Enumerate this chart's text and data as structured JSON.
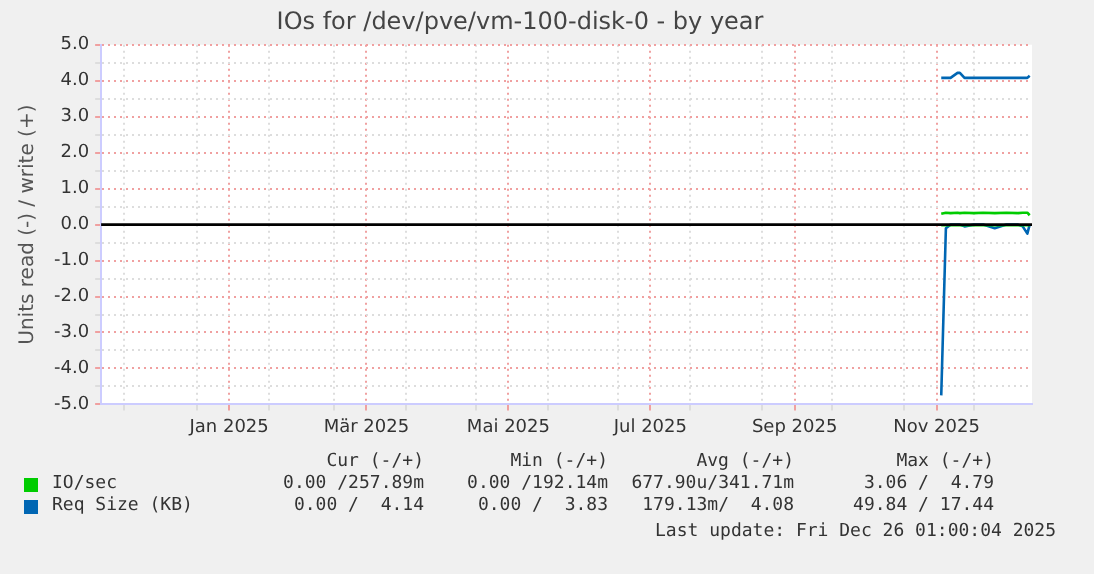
{
  "chart_data": {
    "type": "line",
    "title": "IOs for /dev/pve/vm-100-disk-0 - by year",
    "ylabel": "Units read (-) / write (+)",
    "x": [
      "2025-11-17",
      "2025-11-19",
      "2025-11-21",
      "2025-11-24",
      "2025-11-25",
      "2025-11-27",
      "2025-12-01",
      "2025-12-05",
      "2025-12-10",
      "2025-12-15",
      "2025-12-20",
      "2025-12-22",
      "2025-12-24",
      "2025-12-25"
    ],
    "series": [
      {
        "name": "IO/sec",
        "color": "#00cc00",
        "values": [
          0.3,
          0.33,
          0.32,
          0.33,
          0.32,
          0.33,
          0.32,
          0.33,
          0.32,
          0.33,
          0.32,
          0.33,
          0.33,
          0.26
        ]
      },
      {
        "color": "#00cc00",
        "values": [
          -0.02,
          -0.02,
          -0.02,
          -0.02,
          -0.02,
          -0.02,
          -0.02,
          -0.02,
          -0.02,
          -0.02,
          -0.02,
          -0.02,
          -0.02,
          -0.02
        ]
      },
      {
        "name": "Req Size (KB)",
        "color": "#0066b3",
        "values": [
          4.08,
          4.08,
          4.08,
          4.22,
          4.22,
          4.08,
          4.08,
          4.08,
          4.08,
          4.08,
          4.08,
          4.08,
          4.08,
          4.14
        ]
      },
      {
        "color": "#0066b3",
        "values": [
          -4.75,
          -0.1,
          0,
          0,
          0,
          -0.05,
          0,
          0,
          -0.1,
          0,
          0,
          -0.05,
          -0.25,
          0
        ]
      }
    ],
    "xlim": [
      "2024-11-21",
      "2025-12-26"
    ],
    "xticks": [
      {
        "value": "2024-12-01",
        "label": null
      },
      {
        "value": "2025-01-01",
        "label": null
      },
      {
        "value": "2025-01-15",
        "label": "Jan 2025"
      },
      {
        "value": "2025-02-01",
        "label": null
      },
      {
        "value": "2025-03-01",
        "label": null
      },
      {
        "value": "2025-03-15",
        "label": "Mär 2025"
      },
      {
        "value": "2025-04-01",
        "label": null
      },
      {
        "value": "2025-05-01",
        "label": null
      },
      {
        "value": "2025-05-15",
        "label": "Mai 2025"
      },
      {
        "value": "2025-06-01",
        "label": null
      },
      {
        "value": "2025-07-01",
        "label": null
      },
      {
        "value": "2025-07-15",
        "label": "Jul 2025"
      },
      {
        "value": "2025-08-01",
        "label": null
      },
      {
        "value": "2025-09-01",
        "label": null
      },
      {
        "value": "2025-09-15",
        "label": "Sep 2025"
      },
      {
        "value": "2025-10-01",
        "label": null
      },
      {
        "value": "2025-11-01",
        "label": null
      },
      {
        "value": "2025-11-15",
        "label": "Nov 2025"
      },
      {
        "value": "2025-12-01",
        "label": null
      }
    ],
    "ylim": [
      -5,
      5
    ],
    "yticks": [
      {
        "value": -5,
        "label": "-5.0"
      },
      {
        "value": -4.5,
        "label": null
      },
      {
        "value": -4,
        "label": "-4.0"
      },
      {
        "value": -3.5,
        "label": null
      },
      {
        "value": -3,
        "label": "-3.0"
      },
      {
        "value": -2.5,
        "label": null
      },
      {
        "value": -2,
        "label": "-2.0"
      },
      {
        "value": -1.5,
        "label": null
      },
      {
        "value": -1,
        "label": "-1.0"
      },
      {
        "value": -0.5,
        "label": null
      },
      {
        "value": 0,
        "label": "0.0"
      },
      {
        "value": 0.5,
        "label": null
      },
      {
        "value": 1,
        "label": "1.0"
      },
      {
        "value": 1.5,
        "label": null
      },
      {
        "value": 2,
        "label": "2.0"
      },
      {
        "value": 2.5,
        "label": null
      },
      {
        "value": 3,
        "label": "3.0"
      },
      {
        "value": 3.5,
        "label": null
      },
      {
        "value": 4,
        "label": "4.0"
      },
      {
        "value": 4.5,
        "label": null
      },
      {
        "value": 5,
        "label": "5.0"
      }
    ],
    "ref_lines": [
      {
        "axis": "y",
        "value": 0,
        "color": "#000000"
      }
    ],
    "grid": true,
    "legend": "bottom left",
    "marker": "none",
    "line_style": "solid",
    "annotations": [
      "Cur (-/+)",
      "Min (-/+)",
      "Avg (-/+)",
      "Max (-/+)",
      "0.00 /257.89m",
      "0.00 /192.14m",
      "677.90u/341.71m",
      "3.06 /  4.79",
      "0.00 /  4.14",
      "0.00 /  3.83",
      "179.13m/  4.08",
      "49.84 / 17.44",
      "Last update: Fri Dec 26 01:00:04 2025"
    ]
  }
}
